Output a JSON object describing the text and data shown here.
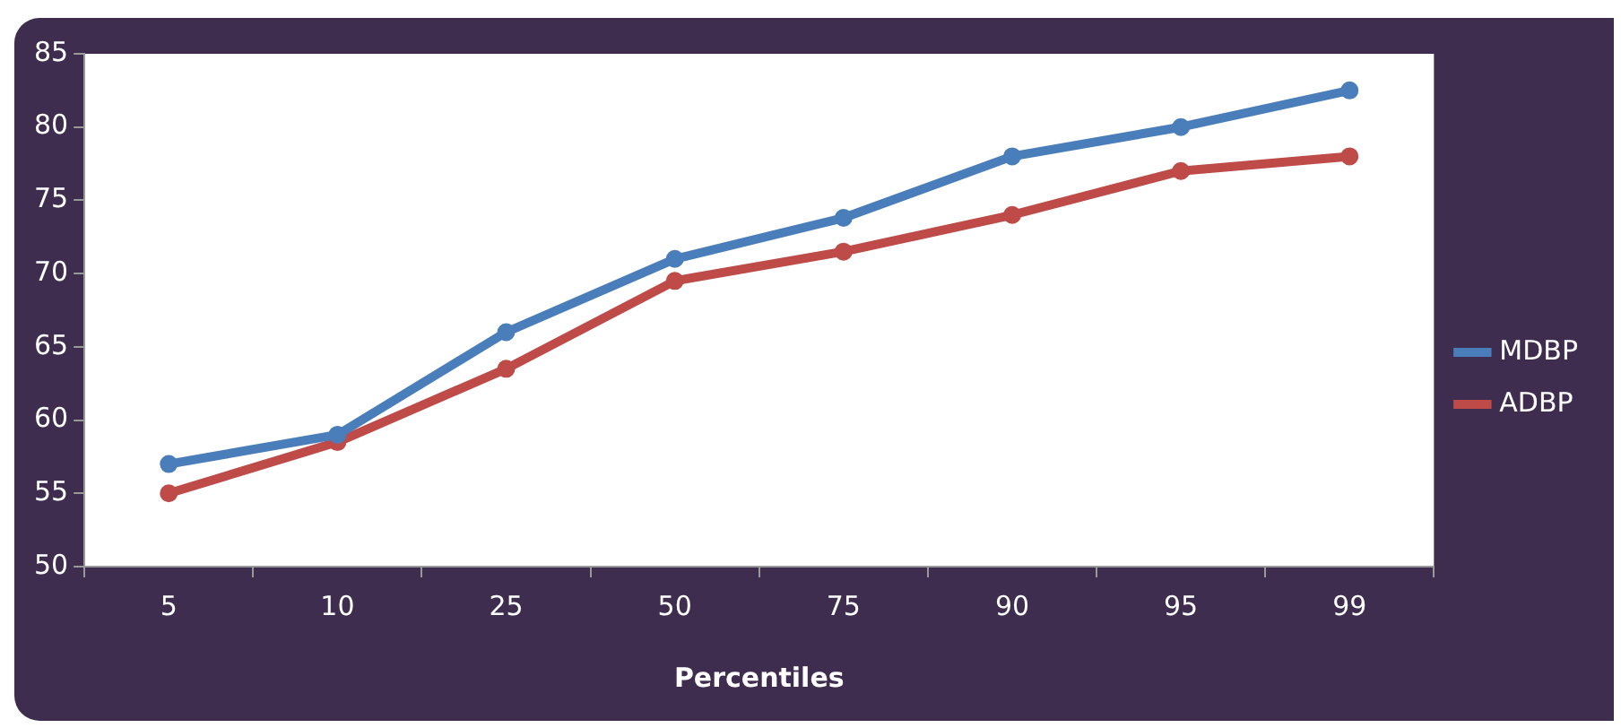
{
  "chart_data": {
    "type": "line",
    "xlabel": "Percentiles",
    "categories": [
      "5",
      "10",
      "25",
      "50",
      "75",
      "90",
      "95",
      "99"
    ],
    "series": [
      {
        "name": "MDBP",
        "color": "#4a7ebb",
        "values": [
          57,
          59,
          66,
          71,
          73.8,
          78,
          80,
          82.5
        ]
      },
      {
        "name": "ADBP",
        "color": "#be4b48",
        "values": [
          55,
          58.5,
          63.5,
          69.5,
          71.5,
          74,
          77,
          78
        ]
      }
    ],
    "ylim": [
      50,
      85
    ],
    "yticks": [
      50,
      55,
      60,
      65,
      70,
      75,
      80,
      85
    ],
    "grid": false,
    "legend": "right",
    "marker": "circle",
    "line_style": "solid"
  }
}
